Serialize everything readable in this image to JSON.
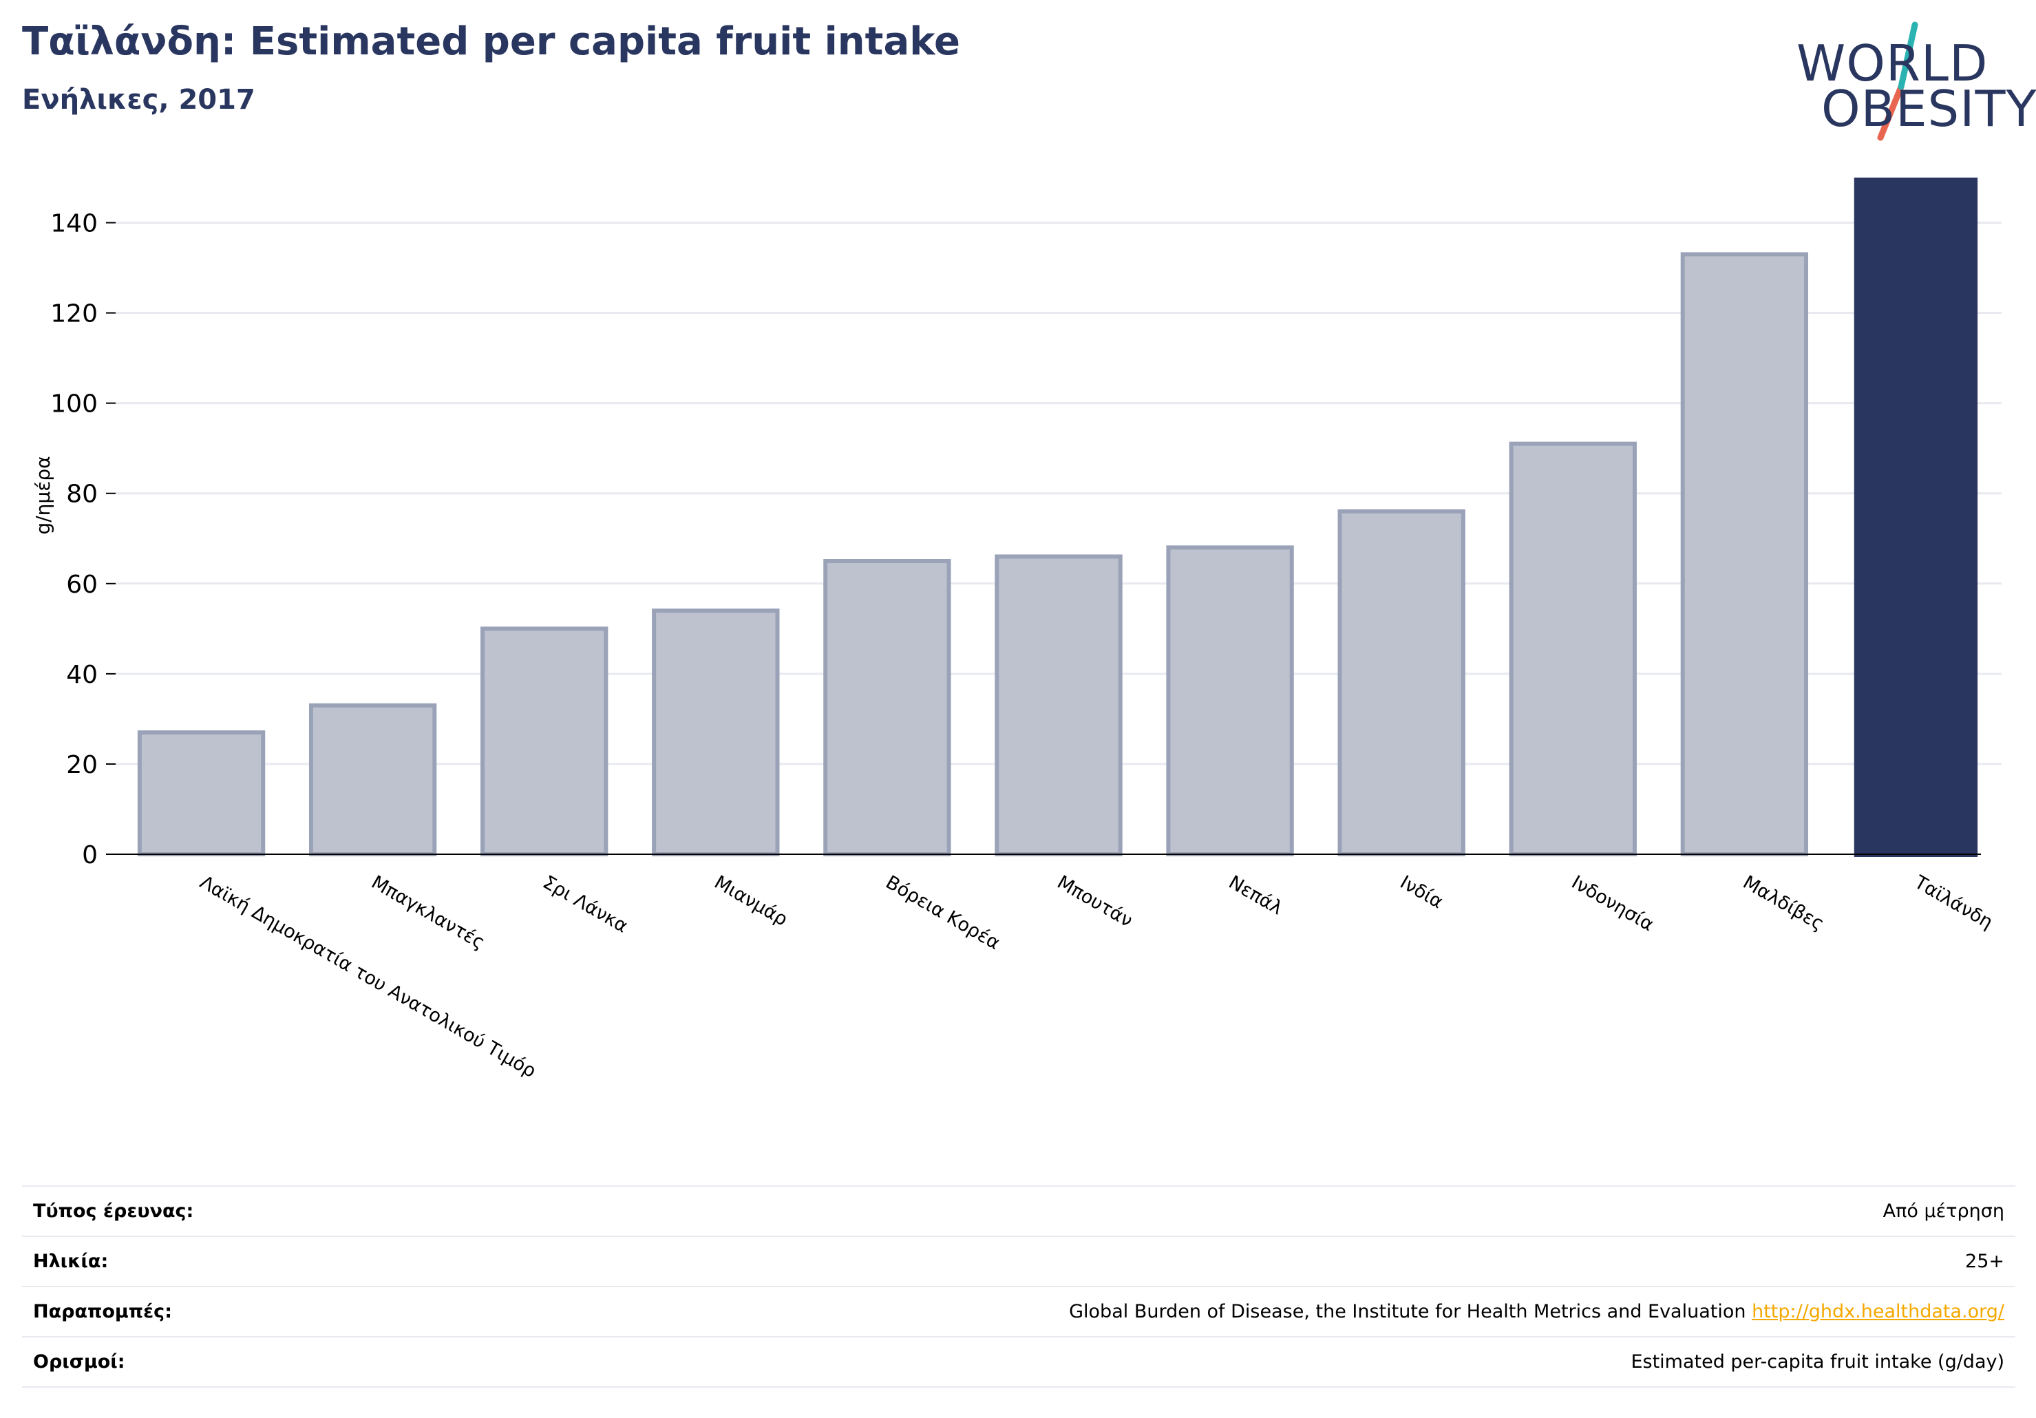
{
  "header": {
    "title": "Ταϊλάνδη: Estimated per capita fruit intake",
    "subtitle": "Ενήλικες, 2017"
  },
  "logo": {
    "line1": "WORLD",
    "line2": "OBESITY",
    "colors": {
      "text": "#29365f",
      "slash_top": "#2ab3b1",
      "slash_bottom": "#e8664f"
    }
  },
  "colors": {
    "highlight_bar": "#29365f",
    "other_bar_fill": "#bec2cf",
    "other_bar_stroke": "#9aa2b8",
    "gridline": "#e8eaf0",
    "axis": "#000000",
    "link": "#f5a800"
  },
  "chart_data": {
    "type": "bar",
    "title": "Ταϊλάνδη: Estimated per capita fruit intake",
    "subtitle": "Ενήλικες, 2017",
    "xlabel": "",
    "ylabel": "g/ημέρα",
    "ylim": [
      0,
      150
    ],
    "yticks": [
      0,
      20,
      40,
      60,
      80,
      100,
      120,
      140
    ],
    "grid": true,
    "categories": [
      "Λαϊκή Δημοκρατία του Ανατολικού Τιμόρ",
      "Μπαγκλαντές",
      "Σρι Λάνκα",
      "Μιανμάρ",
      "Βόρεια Κορέα",
      "Μπουτάν",
      "Νεπάλ",
      "Ινδία",
      "Ινδονησία",
      "Μαλδίβες",
      "Ταϊλάνδη"
    ],
    "values": [
      27,
      33,
      50,
      54,
      65,
      66,
      68,
      76,
      91,
      133,
      150
    ],
    "highlight": "Ταϊλάνδη"
  },
  "info": [
    {
      "key": "Τύπος έρευνας:",
      "value": "Από μέτρηση"
    },
    {
      "key": "Ηλικία:",
      "value": "25+"
    },
    {
      "key": "Παραπομπές:",
      "value": "Global Burden of Disease, the Institute for Health Metrics and Evaluation",
      "link": "http://ghdx.healthdata.org/"
    },
    {
      "key": "Ορισμοί:",
      "value": "Estimated per-capita fruit intake (g/day)"
    }
  ]
}
